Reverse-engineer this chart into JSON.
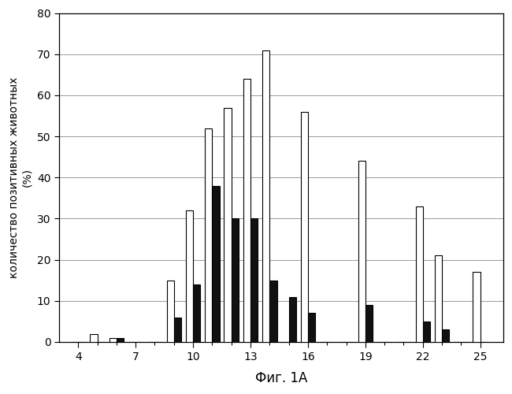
{
  "weeks": [
    4,
    5,
    6,
    7,
    8,
    9,
    10,
    11,
    12,
    13,
    14,
    15,
    16,
    17,
    18,
    19,
    20,
    21,
    22,
    23,
    24,
    25
  ],
  "white_bars": [
    0,
    2,
    1,
    0,
    0,
    15,
    32,
    52,
    57,
    64,
    71,
    0,
    56,
    0,
    0,
    44,
    0,
    0,
    33,
    21,
    0,
    17
  ],
  "black_bars": [
    0,
    0,
    1,
    0,
    0,
    6,
    14,
    38,
    30,
    30,
    15,
    11,
    7,
    0,
    0,
    9,
    0,
    0,
    5,
    3,
    0,
    0
  ],
  "xtick_labeled": [
    4,
    7,
    10,
    13,
    16,
    19,
    22,
    25
  ],
  "xtick_all": [
    4,
    5,
    6,
    7,
    8,
    9,
    10,
    11,
    12,
    13,
    14,
    15,
    16,
    17,
    18,
    19,
    20,
    21,
    22,
    23,
    24,
    25
  ],
  "ylim": [
    0,
    80
  ],
  "yticks": [
    0,
    10,
    20,
    30,
    40,
    50,
    60,
    70,
    80
  ],
  "ylabel_line1": "количество позитивных животных",
  "ylabel_line2": "(%)",
  "xlabel": "Фиг. 1A",
  "bar_width": 0.38,
  "white_color": "#ffffff",
  "black_color": "#111111",
  "edge_color": "#000000",
  "grid_linestyle": "-",
  "grid_color": "#999999",
  "grid_linewidth": 0.7,
  "bg_color": "#ffffff",
  "xlim_left": 3.0,
  "xlim_right": 26.2
}
